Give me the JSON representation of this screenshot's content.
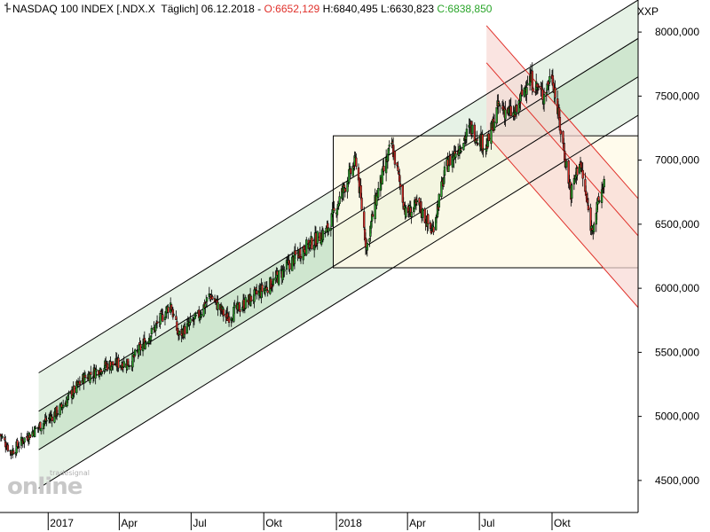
{
  "header": {
    "symbol": "NASDAQ 100 INDEX [.NDX.X",
    "interval": "Täglich]",
    "date": "06.12.2018",
    "open_label": "O:",
    "open": "6652,129",
    "high_label": "H:",
    "high": "6840,495",
    "low_label": "L:",
    "low": "6630,823",
    "close_label": "C:",
    "close": "6838,850"
  },
  "y_axis_unit": "XXP",
  "watermark": {
    "brand": "tradesignal",
    "text": "online"
  },
  "colors": {
    "up": "#2aa52a",
    "down": "#e0302a",
    "channel_fill": "#e6f2e6",
    "channel_inner": "#cfe6cf",
    "box_fill": "#fff9e6",
    "down_channel_fill": "#f8d8d4",
    "down_channel_line": "#e0302a"
  },
  "chart_data": {
    "type": "candlestick",
    "title": "NASDAQ 100 INDEX [.NDX.X Täglich]",
    "ylim": [
      4250,
      8250
    ],
    "y_ticks": [
      4500,
      5000,
      5500,
      6000,
      6500,
      7000,
      7500,
      8000
    ],
    "y_tick_labels": [
      "4500,000",
      "5000,000",
      "5500,000",
      "6000,000",
      "6500,000",
      "7000,000",
      "7500,000",
      "8000,000"
    ],
    "x_range": [
      "2016-11-01",
      "2019-01-18"
    ],
    "x_ticks": [
      {
        "date": "2017-01-01",
        "label": "2017"
      },
      {
        "date": "2017-04-01",
        "label": "Apr"
      },
      {
        "date": "2017-07-01",
        "label": "Jul"
      },
      {
        "date": "2017-10-01",
        "label": "Okt"
      },
      {
        "date": "2018-01-01",
        "label": "2018"
      },
      {
        "date": "2018-04-01",
        "label": "Apr"
      },
      {
        "date": "2018-07-01",
        "label": "Jul"
      },
      {
        "date": "2018-10-01",
        "label": "Okt"
      }
    ],
    "price_path": [
      {
        "date": "2016-11-01",
        "value": 4860
      },
      {
        "date": "2016-11-15",
        "value": 4720
      },
      {
        "date": "2016-12-01",
        "value": 4820
      },
      {
        "date": "2016-12-20",
        "value": 4920
      },
      {
        "date": "2017-01-15",
        "value": 5050
      },
      {
        "date": "2017-02-15",
        "value": 5300
      },
      {
        "date": "2017-03-15",
        "value": 5400
      },
      {
        "date": "2017-04-15",
        "value": 5420
      },
      {
        "date": "2017-05-15",
        "value": 5680
      },
      {
        "date": "2017-06-05",
        "value": 5880
      },
      {
        "date": "2017-06-15",
        "value": 5630
      },
      {
        "date": "2017-07-10",
        "value": 5780
      },
      {
        "date": "2017-07-25",
        "value": 5950
      },
      {
        "date": "2017-08-15",
        "value": 5770
      },
      {
        "date": "2017-09-15",
        "value": 5920
      },
      {
        "date": "2017-10-15",
        "value": 6060
      },
      {
        "date": "2017-11-15",
        "value": 6280
      },
      {
        "date": "2017-12-20",
        "value": 6450
      },
      {
        "date": "2018-01-15",
        "value": 6850
      },
      {
        "date": "2018-01-26",
        "value": 7000
      },
      {
        "date": "2018-02-08",
        "value": 6310
      },
      {
        "date": "2018-02-20",
        "value": 6700
      },
      {
        "date": "2018-03-12",
        "value": 7130
      },
      {
        "date": "2018-03-30",
        "value": 6580
      },
      {
        "date": "2018-04-15",
        "value": 6650
      },
      {
        "date": "2018-05-02",
        "value": 6440
      },
      {
        "date": "2018-05-20",
        "value": 6950
      },
      {
        "date": "2018-06-20",
        "value": 7250
      },
      {
        "date": "2018-07-10",
        "value": 7100
      },
      {
        "date": "2018-07-25",
        "value": 7420
      },
      {
        "date": "2018-08-15",
        "value": 7350
      },
      {
        "date": "2018-09-01",
        "value": 7650
      },
      {
        "date": "2018-09-20",
        "value": 7500
      },
      {
        "date": "2018-10-01",
        "value": 7680
      },
      {
        "date": "2018-10-10",
        "value": 7300
      },
      {
        "date": "2018-10-25",
        "value": 6740
      },
      {
        "date": "2018-11-05",
        "value": 7000
      },
      {
        "date": "2018-11-20",
        "value": 6460
      },
      {
        "date": "2018-12-06",
        "value": 6839
      }
    ],
    "up_channel": {
      "start_date": "2016-12-20",
      "end_date": "2019-01-18",
      "lines": [
        {
          "start": 5340,
          "end": 8250
        },
        {
          "start": 5040,
          "end": 7950
        },
        {
          "start": 4740,
          "end": 7650
        },
        {
          "start": 4440,
          "end": 7350
        }
      ]
    },
    "box": {
      "start_date": "2017-12-28",
      "end_date": "2019-01-18",
      "top": 7190,
      "bottom": 6160
    },
    "down_channel": {
      "start_date": "2018-07-10",
      "end_date": "2019-01-18",
      "lines": [
        {
          "start": 8050,
          "end": 6700
        },
        {
          "start": 7760,
          "end": 6410
        },
        {
          "start": 7200,
          "end": 5850
        }
      ]
    }
  }
}
